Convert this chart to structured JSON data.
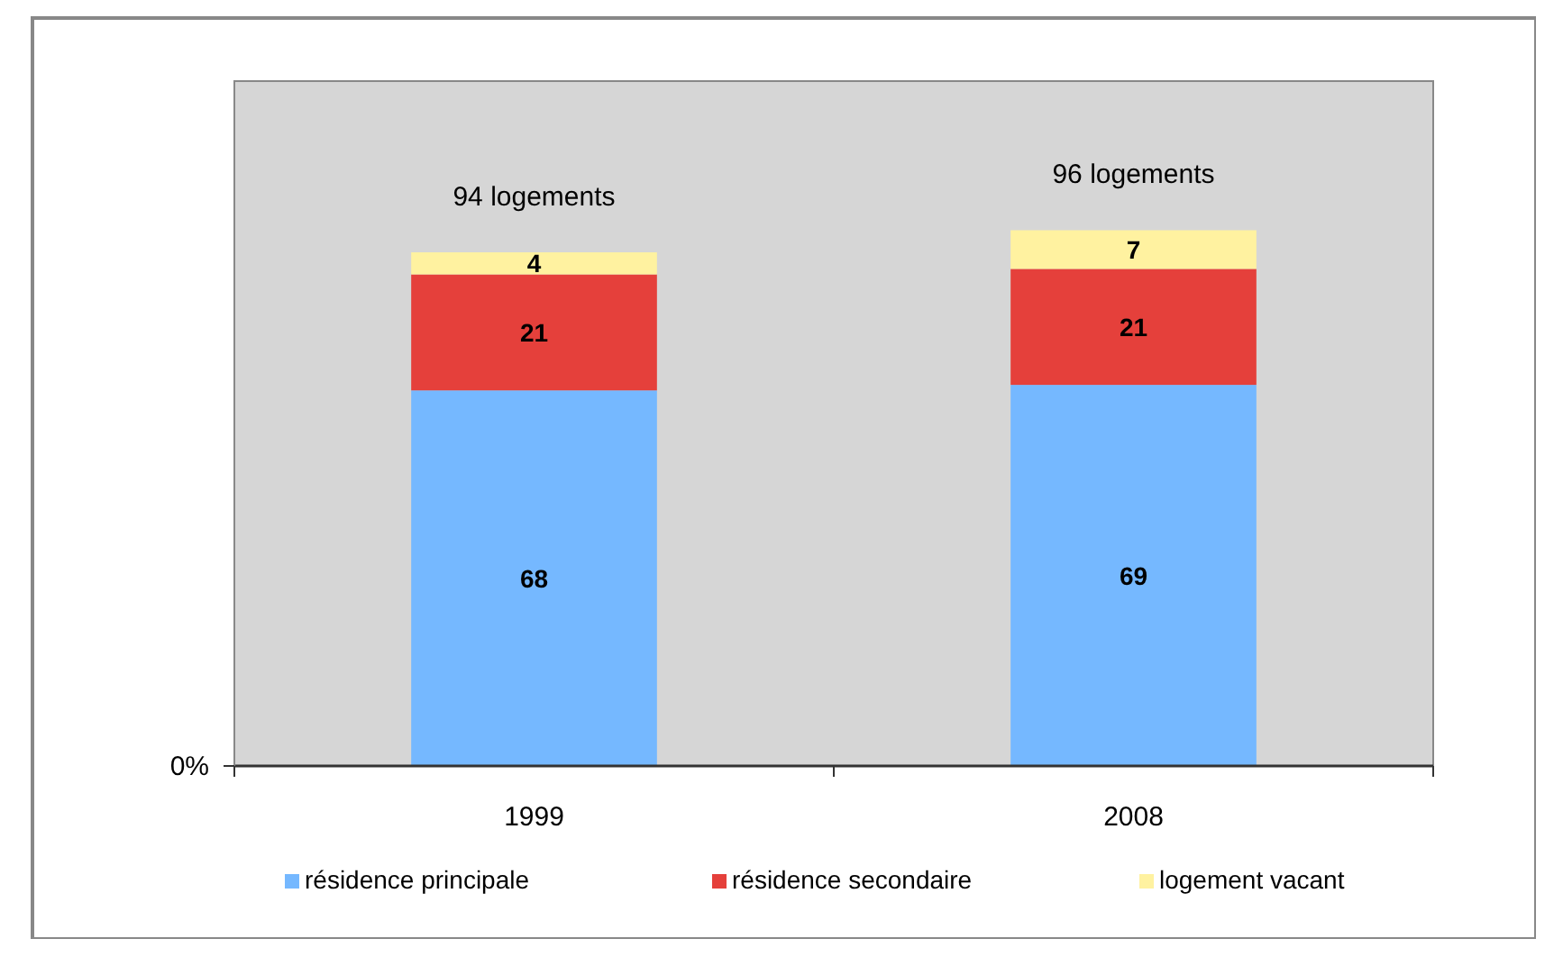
{
  "chart_data": {
    "type": "bar",
    "stacked": true,
    "categories": [
      "1999",
      "2008"
    ],
    "series": [
      {
        "name": "résidence principale",
        "color": "#75b8ff",
        "values": [
          68,
          69
        ]
      },
      {
        "name": "résidence secondaire",
        "color": "#e5403b",
        "values": [
          21,
          21
        ]
      },
      {
        "name": "logement vacant",
        "color": "#fff2a0",
        "values": [
          4,
          7
        ]
      }
    ],
    "ylim": [
      0,
      124
    ],
    "annotations": [
      "0%"
    ],
    "data_labels": true,
    "totals": [
      "94 logements",
      "96 logements"
    ],
    "legend": "bottom",
    "grid": false
  }
}
